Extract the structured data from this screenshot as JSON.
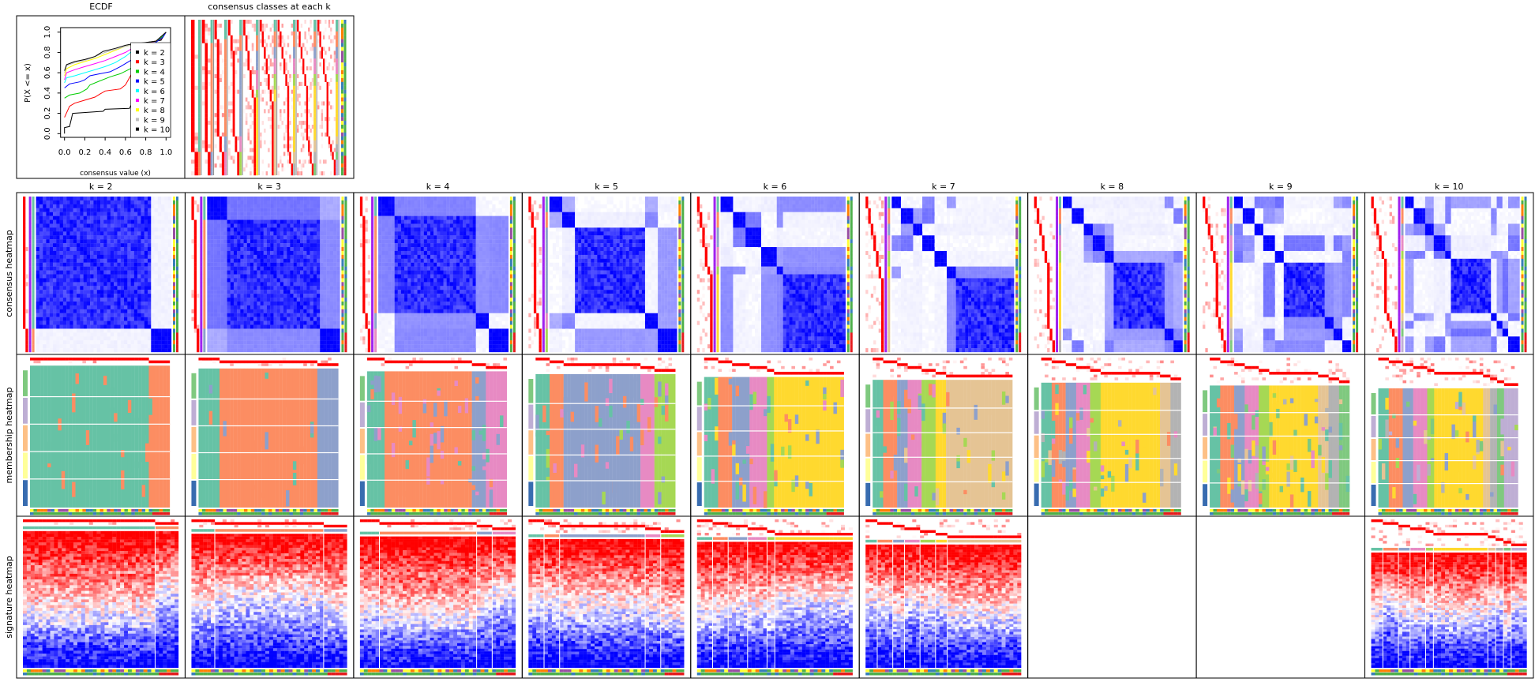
{
  "row_labels": [
    "consensus heatmap",
    "membership heatmap",
    "signature heatmap"
  ],
  "palettes": {
    "class_colors": [
      "#66C2A5",
      "#FC8D62",
      "#8DA0CB",
      "#E78AC3",
      "#A6D854",
      "#FFD92F",
      "#E5C494",
      "#B3B3B3",
      "#7FC97F",
      "#BEAED4"
    ],
    "group_bar_colors": [
      "#7FC97F",
      "#BEAED4",
      "#FDC086",
      "#FFFF99",
      "#386CB0"
    ],
    "annotation1_colors": [
      "#FFFF33",
      "#984EA3",
      "#FF7F00",
      "#377EB8",
      "#4DAF4A"
    ],
    "annotation2_colors": [
      "#4DAF4A",
      "#377EB8",
      "#E41A1C"
    ],
    "consensus_high": "#0000FF",
    "membership_high": "#FF0000",
    "silhouette_bar": "#A020F0",
    "signature_high": "#FF0000",
    "signature_low": "#0000FF"
  },
  "chart_data": [
    {
      "type": "line",
      "title": "ECDF",
      "xlabel": "consensus value (x)",
      "ylabel": "P(X <= x)",
      "xlim": [
        0,
        1
      ],
      "ylim": [
        0,
        1
      ],
      "xticks": [
        "0.0",
        "0.2",
        "0.4",
        "0.6",
        "0.8",
        "1.0"
      ],
      "yticks": [
        "0.0",
        "0.2",
        "0.4",
        "0.6",
        "0.8",
        "1.0"
      ],
      "legend_position": "right",
      "series": [
        {
          "name": "k = 2",
          "color": "#000000",
          "points": [
            [
              0,
              0
            ],
            [
              0,
              0.06
            ],
            [
              0.05,
              0.07
            ],
            [
              0.08,
              0.2
            ],
            [
              0.38,
              0.22
            ],
            [
              0.4,
              0.24
            ],
            [
              0.64,
              0.25
            ],
            [
              0.66,
              0.29
            ],
            [
              0.7,
              0.88
            ],
            [
              0.95,
              0.92
            ],
            [
              1,
              1
            ]
          ]
        },
        {
          "name": "k = 3",
          "color": "#FF0000",
          "points": [
            [
              0,
              0.16
            ],
            [
              0.05,
              0.27
            ],
            [
              0.1,
              0.3
            ],
            [
              0.2,
              0.33
            ],
            [
              0.3,
              0.36
            ],
            [
              0.35,
              0.39
            ],
            [
              0.4,
              0.42
            ],
            [
              0.55,
              0.44
            ],
            [
              0.6,
              0.48
            ],
            [
              0.65,
              0.57
            ],
            [
              0.8,
              0.88
            ],
            [
              0.95,
              0.93
            ],
            [
              1,
              1
            ]
          ]
        },
        {
          "name": "k = 4",
          "color": "#00CD00",
          "points": [
            [
              0,
              0.35
            ],
            [
              0.05,
              0.38
            ],
            [
              0.15,
              0.4
            ],
            [
              0.22,
              0.44
            ],
            [
              0.25,
              0.48
            ],
            [
              0.35,
              0.52
            ],
            [
              0.45,
              0.56
            ],
            [
              0.55,
              0.59
            ],
            [
              0.65,
              0.64
            ],
            [
              0.9,
              0.9
            ],
            [
              0.97,
              0.96
            ],
            [
              1,
              1
            ]
          ]
        },
        {
          "name": "k = 5",
          "color": "#0000FF",
          "points": [
            [
              0,
              0.45
            ],
            [
              0.05,
              0.49
            ],
            [
              0.15,
              0.51
            ],
            [
              0.2,
              0.53
            ],
            [
              0.25,
              0.57
            ],
            [
              0.35,
              0.59
            ],
            [
              0.45,
              0.61
            ],
            [
              0.55,
              0.66
            ],
            [
              0.65,
              0.72
            ],
            [
              0.9,
              0.9
            ],
            [
              0.97,
              0.95
            ],
            [
              1,
              1
            ]
          ]
        },
        {
          "name": "k = 6",
          "color": "#00FFFF",
          "points": [
            [
              0,
              0.5
            ],
            [
              0.02,
              0.55
            ],
            [
              0.1,
              0.57
            ],
            [
              0.2,
              0.6
            ],
            [
              0.3,
              0.63
            ],
            [
              0.4,
              0.66
            ],
            [
              0.5,
              0.7
            ],
            [
              0.6,
              0.76
            ],
            [
              0.65,
              0.8
            ],
            [
              0.9,
              0.91
            ],
            [
              1,
              1
            ]
          ]
        },
        {
          "name": "k = 7",
          "color": "#FF00FF",
          "points": [
            [
              0,
              0.53
            ],
            [
              0.02,
              0.6
            ],
            [
              0.1,
              0.63
            ],
            [
              0.2,
              0.66
            ],
            [
              0.3,
              0.69
            ],
            [
              0.4,
              0.72
            ],
            [
              0.5,
              0.76
            ],
            [
              0.6,
              0.8
            ],
            [
              0.65,
              0.83
            ],
            [
              0.9,
              0.91
            ],
            [
              1,
              1
            ]
          ]
        },
        {
          "name": "k = 8",
          "color": "#FFFF00",
          "points": [
            [
              0,
              0.57
            ],
            [
              0.02,
              0.64
            ],
            [
              0.1,
              0.68
            ],
            [
              0.2,
              0.71
            ],
            [
              0.3,
              0.74
            ],
            [
              0.4,
              0.78
            ],
            [
              0.5,
              0.82
            ],
            [
              0.6,
              0.86
            ],
            [
              0.65,
              0.87
            ],
            [
              0.9,
              0.91
            ],
            [
              1,
              1
            ]
          ]
        },
        {
          "name": "k = 9",
          "color": "#BEBEBE",
          "points": [
            [
              0,
              0.6
            ],
            [
              0.02,
              0.67
            ],
            [
              0.1,
              0.7
            ],
            [
              0.2,
              0.72
            ],
            [
              0.3,
              0.76
            ],
            [
              0.4,
              0.8
            ],
            [
              0.5,
              0.83
            ],
            [
              0.6,
              0.86
            ],
            [
              0.65,
              0.87
            ],
            [
              0.9,
              0.91
            ],
            [
              1,
              1
            ]
          ]
        },
        {
          "name": "k = 10",
          "color": "#000000",
          "points": [
            [
              0,
              0.62
            ],
            [
              0.02,
              0.68
            ],
            [
              0.1,
              0.71
            ],
            [
              0.2,
              0.73
            ],
            [
              0.3,
              0.76
            ],
            [
              0.38,
              0.81
            ],
            [
              0.5,
              0.84
            ],
            [
              0.6,
              0.87
            ],
            [
              0.65,
              0.88
            ],
            [
              0.9,
              0.91
            ],
            [
              1,
              1
            ]
          ]
        }
      ]
    },
    {
      "type": "heatmap",
      "title": "consensus classes at each k",
      "k_values": [
        2,
        3,
        4,
        5,
        6,
        7,
        8,
        9,
        10
      ]
    },
    {
      "type": "heatmap",
      "panels": [
        {
          "label": "k = 2",
          "k": 2,
          "class_proportions": [
            0.85,
            0.15
          ],
          "signature": true
        },
        {
          "label": "k = 3",
          "k": 3,
          "class_proportions": [
            0.15,
            0.7,
            0.15
          ],
          "signature": true
        },
        {
          "label": "k = 4",
          "k": 4,
          "class_proportions": [
            0.12,
            0.62,
            0.12,
            0.14
          ],
          "signature": true
        },
        {
          "label": "k = 5",
          "k": 5,
          "class_proportions": [
            0.1,
            0.1,
            0.55,
            0.1,
            0.15
          ],
          "signature": true
        },
        {
          "label": "k = 6",
          "k": 6,
          "class_proportions": [
            0.1,
            0.1,
            0.12,
            0.12,
            0.06,
            0.5
          ],
          "signature": true
        },
        {
          "label": "k = 7",
          "k": 7,
          "class_proportions": [
            0.08,
            0.09,
            0.09,
            0.1,
            0.1,
            0.06,
            0.48
          ],
          "signature": true
        },
        {
          "label": "k = 8",
          "k": 8,
          "class_proportions": [
            0.08,
            0.09,
            0.09,
            0.1,
            0.06,
            0.42,
            0.08,
            0.08
          ],
          "signature": false
        },
        {
          "label": "k = 9",
          "k": 9,
          "class_proportions": [
            0.08,
            0.09,
            0.09,
            0.1,
            0.06,
            0.36,
            0.07,
            0.08,
            0.07
          ],
          "signature": false
        },
        {
          "label": "k = 10",
          "k": 10,
          "class_proportions": [
            0.08,
            0.09,
            0.09,
            0.1,
            0.04,
            0.36,
            0.04,
            0.04,
            0.06,
            0.1
          ],
          "signature": true
        }
      ]
    }
  ]
}
